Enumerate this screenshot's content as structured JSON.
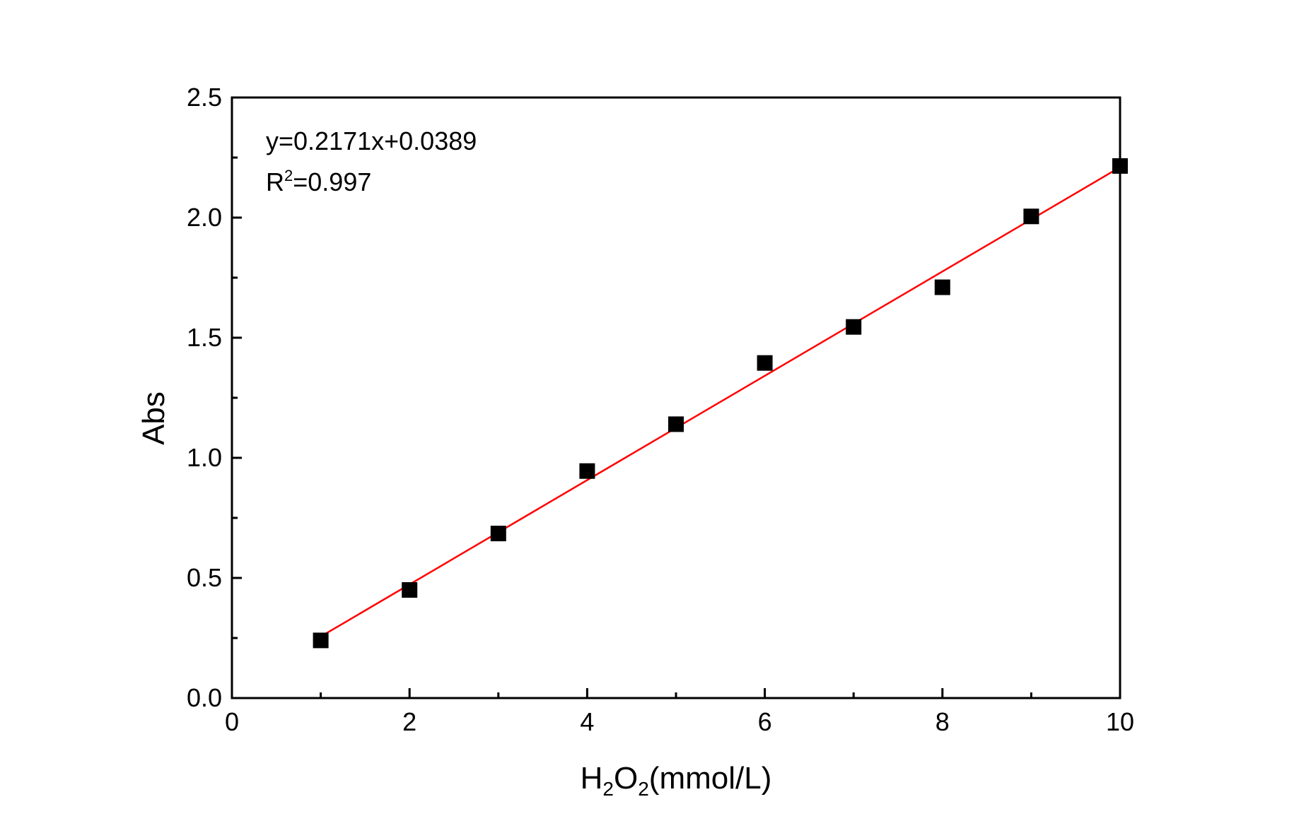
{
  "chart_data": {
    "type": "scatter",
    "xlabel_main": "H",
    "xlabel_sub1": "2",
    "xlabel_mid": "O",
    "xlabel_sub2": "2",
    "xlabel_tail": "(mmol/L)",
    "ylabel": "Abs",
    "xlim": [
      0,
      10
    ],
    "ylim": [
      0,
      2.5
    ],
    "x_ticks": [
      "0",
      "2",
      "4",
      "6",
      "8",
      "10"
    ],
    "y_ticks": [
      "0.0",
      "0.5",
      "1.0",
      "1.5",
      "2.0",
      "2.5"
    ],
    "grid": false,
    "series": [
      {
        "x": [
          1,
          2,
          3,
          4,
          5,
          6,
          7,
          8,
          9,
          10
        ],
        "y": [
          0.24,
          0.45,
          0.685,
          0.945,
          1.14,
          1.395,
          1.545,
          1.71,
          2.005,
          2.215
        ],
        "marker": "square",
        "color": "#000000"
      }
    ],
    "fit": {
      "slope": 0.2171,
      "intercept": 0.0389,
      "x_range": [
        1,
        10
      ],
      "color": "#ff0000"
    },
    "annotation_line1": "y=0.2171x+0.0389",
    "annotation_r": "R",
    "annotation_sup": "2",
    "annotation_r_value": "=0.997"
  }
}
